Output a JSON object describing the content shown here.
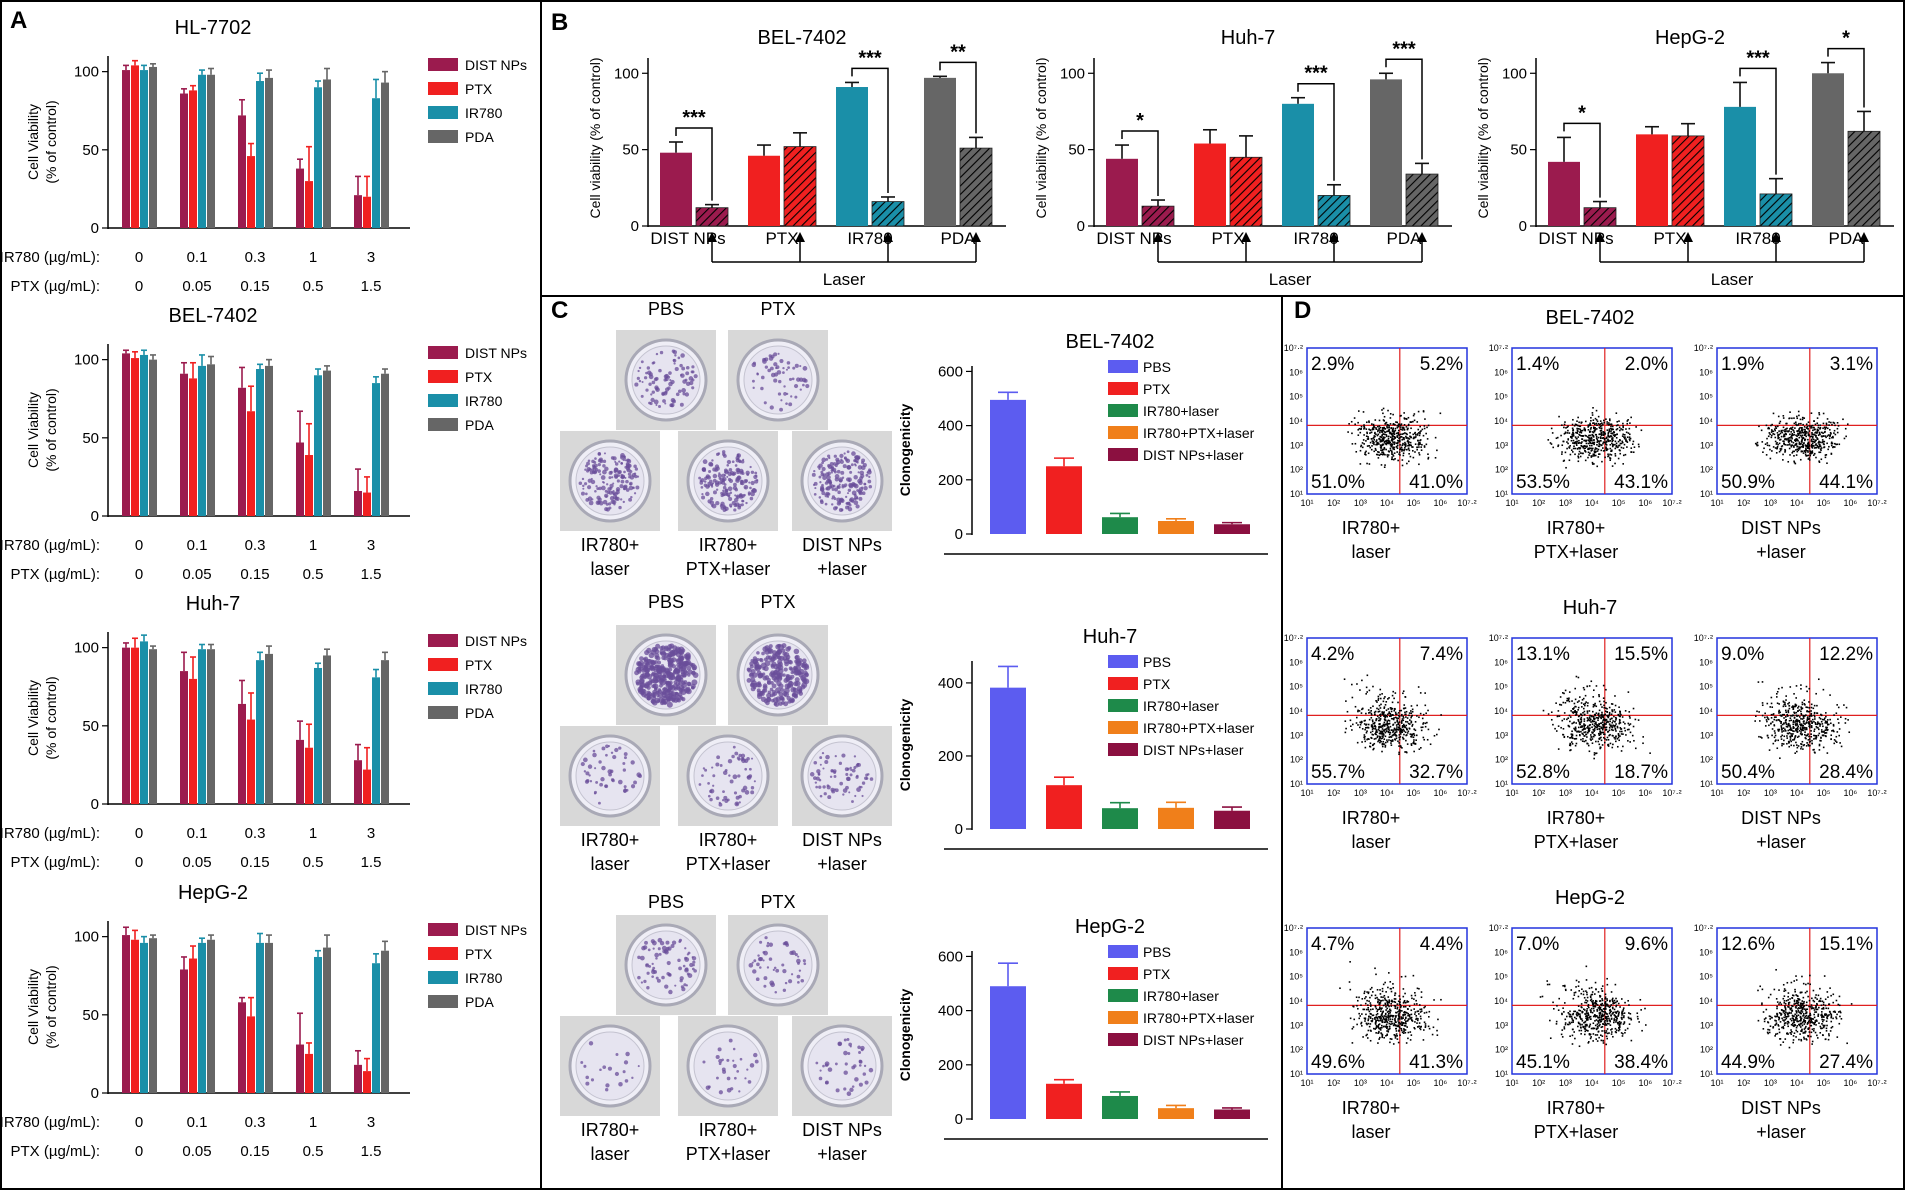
{
  "colors": {
    "DIST NPs": "#9B1B4E",
    "PTX": "#F02020",
    "IR780": "#1A8FA8",
    "PDA": "#666666",
    "PBS": "#5C5CF0",
    "IR780+laser": "#1E8A4A",
    "IR780+PTX+laser": "#F07F1A",
    "DIST NPs+laser": "#8B1040",
    "facs_border": "#2233DD",
    "facs_gate": "#E02020"
  },
  "panel_labels": [
    "A",
    "B",
    "C",
    "D"
  ],
  "chart_data": [
    {
      "panel": "A",
      "type": "bar",
      "title": "HL-7702",
      "ylabel": [
        "Cell Viability",
        "(% of control)"
      ],
      "ylim": [
        0,
        110
      ],
      "yticks": [
        0,
        50,
        100
      ],
      "categories": [
        "0",
        "0.1",
        "0.3",
        "1",
        "3"
      ],
      "rows": [
        {
          "label": "IR780 (µg/mL):",
          "values": [
            "0",
            "0.1",
            "0.3",
            "1",
            "3"
          ]
        },
        {
          "label": "PTX (µg/mL):",
          "values": [
            "0",
            "0.05",
            "0.15",
            "0.5",
            "1.5"
          ]
        }
      ],
      "series": [
        {
          "name": "DIST NPs",
          "values": [
            101,
            86,
            72,
            38,
            21
          ],
          "err": [
            3,
            3,
            10,
            6,
            12
          ]
        },
        {
          "name": "PTX",
          "values": [
            104,
            88,
            46,
            30,
            20
          ],
          "err": [
            3,
            3,
            8,
            22,
            13
          ]
        },
        {
          "name": "IR780",
          "values": [
            101,
            98,
            94,
            90,
            83
          ],
          "err": [
            3,
            3,
            5,
            4,
            12
          ]
        },
        {
          "name": "PDA",
          "values": [
            103,
            98,
            96,
            95,
            93
          ],
          "err": [
            2,
            4,
            5,
            7,
            7
          ]
        }
      ]
    },
    {
      "panel": "A",
      "type": "bar",
      "title": "BEL-7402",
      "ylabel": [
        "Cell Viability",
        "(% of control)"
      ],
      "ylim": [
        0,
        110
      ],
      "yticks": [
        0,
        50,
        100
      ],
      "categories": [
        "0",
        "0.1",
        "0.3",
        "1",
        "3"
      ],
      "rows": [
        {
          "label": "IR780 (µg/mL):",
          "values": [
            "0",
            "0.1",
            "0.3",
            "1",
            "3"
          ]
        },
        {
          "label": "PTX (µg/mL):",
          "values": [
            "0",
            "0.05",
            "0.15",
            "0.5",
            "1.5"
          ]
        }
      ],
      "series": [
        {
          "name": "DIST NPs",
          "values": [
            104,
            91,
            82,
            47,
            16
          ],
          "err": [
            2,
            7,
            13,
            20,
            14
          ]
        },
        {
          "name": "PTX",
          "values": [
            101,
            88,
            67,
            39,
            15
          ],
          "err": [
            4,
            10,
            16,
            20,
            10
          ]
        },
        {
          "name": "IR780",
          "values": [
            103,
            96,
            94,
            90,
            85
          ],
          "err": [
            3,
            7,
            3,
            4,
            4
          ]
        },
        {
          "name": "PDA",
          "values": [
            100,
            97,
            96,
            93,
            91
          ],
          "err": [
            3,
            5,
            4,
            3,
            3
          ]
        }
      ]
    },
    {
      "panel": "A",
      "type": "bar",
      "title": "Huh-7",
      "ylabel": [
        "Cell Viability",
        "(% of control)"
      ],
      "ylim": [
        0,
        110
      ],
      "yticks": [
        0,
        50,
        100
      ],
      "categories": [
        "0",
        "0.1",
        "0.3",
        "1",
        "3"
      ],
      "rows": [
        {
          "label": "IR780 (µg/mL):",
          "values": [
            "0",
            "0.1",
            "0.3",
            "1",
            "3"
          ]
        },
        {
          "label": "PTX (µg/mL):",
          "values": [
            "0",
            "0.05",
            "0.15",
            "0.5",
            "1.5"
          ]
        }
      ],
      "series": [
        {
          "name": "DIST NPs",
          "values": [
            100,
            85,
            64,
            41,
            28
          ],
          "err": [
            3,
            12,
            15,
            12,
            10
          ]
        },
        {
          "name": "PTX",
          "values": [
            100,
            80,
            54,
            36,
            22
          ],
          "err": [
            6,
            14,
            17,
            15,
            14
          ]
        },
        {
          "name": "IR780",
          "values": [
            104,
            99,
            92,
            87,
            81
          ],
          "err": [
            4,
            3,
            5,
            3,
            5
          ]
        },
        {
          "name": "PDA",
          "values": [
            99,
            99,
            96,
            95,
            92
          ],
          "err": [
            2,
            3,
            5,
            4,
            5
          ]
        }
      ]
    },
    {
      "panel": "A",
      "type": "bar",
      "title": "HepG-2",
      "ylabel": [
        "Cell Viability",
        "(% of control)"
      ],
      "ylim": [
        0,
        110
      ],
      "yticks": [
        0,
        50,
        100
      ],
      "categories": [
        "0",
        "0.1",
        "0.3",
        "1",
        "3"
      ],
      "rows": [
        {
          "label": "IR780 (µg/mL):",
          "values": [
            "0",
            "0.1",
            "0.3",
            "1",
            "3"
          ]
        },
        {
          "label": "PTX (µg/mL):",
          "values": [
            "0",
            "0.05",
            "0.15",
            "0.5",
            "1.5"
          ]
        }
      ],
      "series": [
        {
          "name": "DIST NPs",
          "values": [
            101,
            79,
            58,
            31,
            18
          ],
          "err": [
            5,
            8,
            3,
            20,
            9
          ]
        },
        {
          "name": "PTX",
          "values": [
            98,
            86,
            49,
            25,
            14
          ],
          "err": [
            6,
            8,
            12,
            7,
            8
          ]
        },
        {
          "name": "IR780",
          "values": [
            96,
            96,
            96,
            87,
            83
          ],
          "err": [
            4,
            3,
            6,
            4,
            6
          ]
        },
        {
          "name": "PDA",
          "values": [
            99,
            98,
            96,
            93,
            91
          ],
          "err": [
            2,
            3,
            5,
            8,
            6
          ]
        }
      ]
    },
    {
      "panel": "B",
      "type": "bar",
      "title": "BEL-7402",
      "ylabel": "Cell viability (% of control)",
      "ylim": [
        0,
        110
      ],
      "yticks": [
        0,
        50,
        100
      ],
      "groups": [
        "DIST NPs",
        "PTX",
        "IR780",
        "PDA"
      ],
      "xlabel": "Laser",
      "bars": [
        {
          "group": "DIST NPs",
          "laser": false,
          "value": 48,
          "err": 7
        },
        {
          "group": "DIST NPs",
          "laser": true,
          "value": 12,
          "err": 2
        },
        {
          "group": "PTX",
          "laser": false,
          "value": 46,
          "err": 7
        },
        {
          "group": "PTX",
          "laser": true,
          "value": 52,
          "err": 9
        },
        {
          "group": "IR780",
          "laser": false,
          "value": 91,
          "err": 3
        },
        {
          "group": "IR780",
          "laser": true,
          "value": 16,
          "err": 3
        },
        {
          "group": "PDA",
          "laser": false,
          "value": 97,
          "err": 1
        },
        {
          "group": "PDA",
          "laser": true,
          "value": 51,
          "err": 7
        }
      ],
      "significance": [
        "***",
        "***",
        "**"
      ]
    },
    {
      "panel": "B",
      "type": "bar",
      "title": "Huh-7",
      "ylabel": "Cell viability (% of control)",
      "ylim": [
        0,
        110
      ],
      "yticks": [
        0,
        50,
        100
      ],
      "groups": [
        "DIST NPs",
        "PTX",
        "IR780",
        "PDA"
      ],
      "xlabel": "Laser",
      "bars": [
        {
          "group": "DIST NPs",
          "laser": false,
          "value": 44,
          "err": 9
        },
        {
          "group": "DIST NPs",
          "laser": true,
          "value": 13,
          "err": 4
        },
        {
          "group": "PTX",
          "laser": false,
          "value": 54,
          "err": 9
        },
        {
          "group": "PTX",
          "laser": true,
          "value": 45,
          "err": 14
        },
        {
          "group": "IR780",
          "laser": false,
          "value": 80,
          "err": 4
        },
        {
          "group": "IR780",
          "laser": true,
          "value": 20,
          "err": 7
        },
        {
          "group": "PDA",
          "laser": false,
          "value": 96,
          "err": 4
        },
        {
          "group": "PDA",
          "laser": true,
          "value": 34,
          "err": 7
        }
      ],
      "significance": [
        "*",
        "***",
        "***"
      ]
    },
    {
      "panel": "B",
      "type": "bar",
      "title": "HepG-2",
      "ylabel": "Cell viability (% of control)",
      "ylim": [
        0,
        110
      ],
      "yticks": [
        0,
        50,
        100
      ],
      "groups": [
        "DIST NPs",
        "PTX",
        "IR780",
        "PDA"
      ],
      "xlabel": "Laser",
      "bars": [
        {
          "group": "DIST NPs",
          "laser": false,
          "value": 42,
          "err": 16
        },
        {
          "group": "DIST NPs",
          "laser": true,
          "value": 12,
          "err": 4
        },
        {
          "group": "PTX",
          "laser": false,
          "value": 60,
          "err": 5
        },
        {
          "group": "PTX",
          "laser": true,
          "value": 59,
          "err": 8
        },
        {
          "group": "IR780",
          "laser": false,
          "value": 78,
          "err": 16
        },
        {
          "group": "IR780",
          "laser": true,
          "value": 21,
          "err": 10
        },
        {
          "group": "PDA",
          "laser": false,
          "value": 100,
          "err": 7
        },
        {
          "group": "PDA",
          "laser": true,
          "value": 62,
          "err": 13
        }
      ],
      "significance": [
        "*",
        "***",
        "*"
      ]
    },
    {
      "panel": "C",
      "type": "bar",
      "title": "BEL-7402",
      "ylabel": "Clonogenicity",
      "ylim": [
        0,
        620
      ],
      "yticks": [
        0,
        200,
        400,
        600
      ],
      "categories": [
        "PBS",
        "PTX",
        "IR780+laser",
        "IR780+PTX+laser",
        "DIST NPs+laser"
      ],
      "values": [
        495,
        250,
        62,
        48,
        36
      ],
      "err": [
        28,
        30,
        14,
        8,
        6
      ]
    },
    {
      "panel": "C",
      "type": "bar",
      "title": "Huh-7",
      "ylabel": "Clonogenicity",
      "ylim": [
        0,
        460
      ],
      "yticks": [
        0,
        200,
        400
      ],
      "categories": [
        "PBS",
        "PTX",
        "IR780+laser",
        "IR780+PTX+laser",
        "DIST NPs+laser"
      ],
      "values": [
        387,
        120,
        57,
        58,
        50
      ],
      "err": [
        58,
        22,
        15,
        15,
        10
      ]
    },
    {
      "panel": "C",
      "type": "bar",
      "title": "HepG-2",
      "ylabel": "Clonogenicity",
      "ylim": [
        0,
        620
      ],
      "yticks": [
        0,
        200,
        400,
        600
      ],
      "categories": [
        "PBS",
        "PTX",
        "IR780+laser",
        "IR780+PTX+laser",
        "DIST NPs+laser"
      ],
      "values": [
        490,
        130,
        85,
        40,
        35
      ],
      "err": [
        85,
        15,
        15,
        10,
        6
      ]
    },
    {
      "panel": "D",
      "type": "scatter",
      "title": "BEL-7402",
      "plots": [
        {
          "label": [
            "IR780+",
            "laser"
          ],
          "quadrants": [
            "2.9%",
            "5.2%",
            "51.0%",
            "41.0%"
          ]
        },
        {
          "label": [
            "IR780+",
            "PTX+laser"
          ],
          "quadrants": [
            "1.4%",
            "2.0%",
            "53.5%",
            "43.1%"
          ]
        },
        {
          "label": [
            "DIST NPs",
            "+laser"
          ],
          "quadrants": [
            "1.9%",
            "3.1%",
            "50.9%",
            "44.1%"
          ]
        }
      ]
    },
    {
      "panel": "D",
      "type": "scatter",
      "title": "Huh-7",
      "plots": [
        {
          "label": [
            "IR780+",
            "laser"
          ],
          "quadrants": [
            "4.2%",
            "7.4%",
            "55.7%",
            "32.7%"
          ]
        },
        {
          "label": [
            "IR780+",
            "PTX+laser"
          ],
          "quadrants": [
            "13.1%",
            "15.5%",
            "52.8%",
            "18.7%"
          ]
        },
        {
          "label": [
            "DIST NPs",
            "+laser"
          ],
          "quadrants": [
            "9.0%",
            "12.2%",
            "50.4%",
            "28.4%"
          ]
        }
      ]
    },
    {
      "panel": "D",
      "type": "scatter",
      "title": "HepG-2",
      "plots": [
        {
          "label": [
            "IR780+",
            "laser"
          ],
          "quadrants": [
            "4.7%",
            "4.4%",
            "49.6%",
            "41.3%"
          ]
        },
        {
          "label": [
            "IR780+",
            "PTX+laser"
          ],
          "quadrants": [
            "7.0%",
            "9.6%",
            "45.1%",
            "38.4%"
          ]
        },
        {
          "label": [
            "DIST NPs",
            "+laser"
          ],
          "quadrants": [
            "12.6%",
            "15.1%",
            "44.9%",
            "27.4%"
          ]
        }
      ]
    }
  ],
  "dishes": {
    "top_labels": [
      "PBS",
      "PTX"
    ],
    "bottom_labels": [
      [
        "IR780+",
        "laser"
      ],
      [
        "IR780+",
        "PTX+laser"
      ],
      [
        "DIST NPs",
        "+laser"
      ]
    ]
  },
  "facs_ticks": {
    "x": [
      "10¹",
      "10²",
      "10³",
      "10⁴",
      "10⁵",
      "10⁶",
      "10⁷·²"
    ],
    "y": [
      "10¹",
      "10²",
      "10³",
      "10⁴",
      "10⁵",
      "10⁶",
      "10⁷·²"
    ]
  }
}
